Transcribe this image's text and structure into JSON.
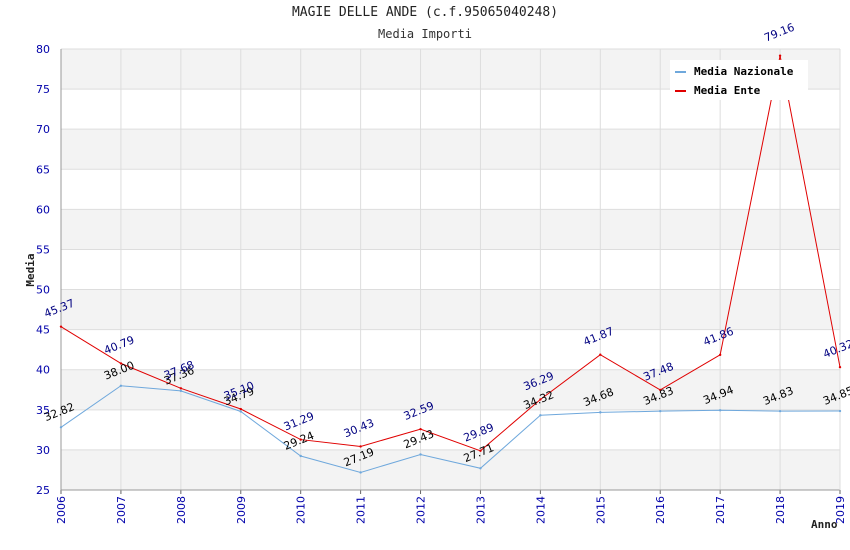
{
  "colors": {
    "nazionale": "#6fa8dc",
    "ente": "#e00000",
    "band": "#f3f3f3",
    "grid": "#dddddd"
  },
  "chart_data": {
    "type": "line",
    "title": "MAGIE DELLE ANDE (c.f.95065040248)",
    "subtitle": "Media Importi",
    "xlabel": "Anno",
    "ylabel": "Media",
    "ylim": [
      25,
      80
    ],
    "yticks": [
      25,
      30,
      35,
      40,
      45,
      50,
      55,
      60,
      65,
      70,
      75,
      80
    ],
    "grid": true,
    "legend": "top-right",
    "categories": [
      "2006",
      "2007",
      "2008",
      "2009",
      "2010",
      "2011",
      "2012",
      "2013",
      "2014",
      "2015",
      "2016",
      "2017",
      "2018",
      "2019"
    ],
    "series": [
      {
        "name": "Media Nazionale",
        "values": [
          32.82,
          38.0,
          37.36,
          34.79,
          29.24,
          27.19,
          29.43,
          27.71,
          34.32,
          34.68,
          34.83,
          34.94,
          34.83,
          34.85
        ],
        "labels": [
          "32.82",
          "38.00",
          "37.36",
          "34.79",
          "29.24",
          "27.19",
          "29.43",
          "27.71",
          "34.32",
          "34.68",
          "34.83",
          "34.94",
          "34.83",
          "34.85"
        ]
      },
      {
        "name": "Media Ente",
        "values": [
          45.37,
          40.79,
          37.68,
          35.1,
          31.29,
          30.43,
          32.59,
          29.89,
          36.29,
          41.87,
          37.48,
          41.86,
          79.16,
          40.32
        ],
        "labels": [
          "45.37",
          "40.79",
          "37.68",
          "35.10",
          "31.29",
          "30.43",
          "32.59",
          "29.89",
          "36.29",
          "41.87",
          "37.48",
          "41.86",
          "79.16",
          "40.32"
        ]
      }
    ]
  }
}
